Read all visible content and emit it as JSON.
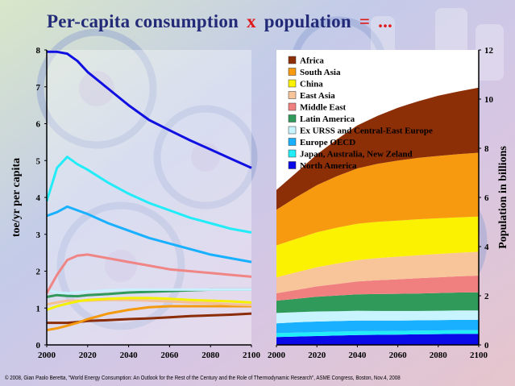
{
  "title": {
    "left": "Per-capita consumption",
    "times": "x",
    "middle": "population",
    "equals": "=",
    "dots": "..."
  },
  "footer": "© 2008, Gian Paolo Beretta, \"World Energy Consumption: An Outlook for the Rest of the Century and the Role of Thermodynamic Research\", ASME Congress, Boston, Nov.4, 2008",
  "chart_data": [
    {
      "type": "line",
      "title": "Per-capita consumption",
      "xlabel": "",
      "ylabel": "toe/yr per capita",
      "xlim": [
        2000,
        2100
      ],
      "ylim": [
        0,
        8
      ],
      "xticks": [
        "2000",
        "2020",
        "2040",
        "2060",
        "2080",
        "2100"
      ],
      "yticks": [
        "0",
        "1",
        "2",
        "3",
        "4",
        "5",
        "6",
        "7",
        "8"
      ],
      "x": [
        2000,
        2005,
        2010,
        2015,
        2020,
        2030,
        2040,
        2050,
        2060,
        2070,
        2080,
        2090,
        2100
      ],
      "series": [
        {
          "name": "North America",
          "color": "#1010e0",
          "values": [
            7.95,
            7.95,
            7.9,
            7.7,
            7.4,
            6.95,
            6.5,
            6.1,
            5.82,
            5.55,
            5.3,
            5.05,
            4.8
          ]
        },
        {
          "name": "Japan, Australia, New Zeland",
          "color": "#22ecf8",
          "values": [
            3.9,
            4.8,
            5.1,
            4.9,
            4.75,
            4.4,
            4.1,
            3.85,
            3.65,
            3.45,
            3.3,
            3.15,
            3.05
          ]
        },
        {
          "name": "Europe OECD",
          "color": "#18b0ff",
          "values": [
            3.5,
            3.6,
            3.75,
            3.65,
            3.55,
            3.3,
            3.1,
            2.9,
            2.75,
            2.6,
            2.45,
            2.35,
            2.25
          ]
        },
        {
          "name": "Middle East",
          "color": "#f08585",
          "values": [
            1.4,
            1.9,
            2.3,
            2.42,
            2.45,
            2.35,
            2.25,
            2.15,
            2.05,
            2.0,
            1.95,
            1.9,
            1.85
          ]
        },
        {
          "name": "Ex URSS and Central-East Europe",
          "color": "#c8f0ff",
          "values": [
            1.5,
            1.42,
            1.4,
            1.42,
            1.45,
            1.48,
            1.5,
            1.5,
            1.5,
            1.5,
            1.5,
            1.5,
            1.5
          ]
        },
        {
          "name": "Latin America",
          "color": "#2f9a5a",
          "values": [
            1.3,
            1.35,
            1.33,
            1.32,
            1.35,
            1.38,
            1.42,
            1.44,
            1.46,
            1.48,
            1.5,
            1.5,
            1.5
          ]
        },
        {
          "name": "China",
          "color": "#f4f000",
          "values": [
            0.95,
            1.05,
            1.12,
            1.18,
            1.22,
            1.25,
            1.27,
            1.27,
            1.25,
            1.22,
            1.2,
            1.18,
            1.15
          ]
        },
        {
          "name": "East Asia",
          "color": "#f5c095",
          "values": [
            1.1,
            1.15,
            1.2,
            1.2,
            1.2,
            1.22,
            1.22,
            1.2,
            1.18,
            1.15,
            1.13,
            1.1,
            1.08
          ]
        },
        {
          "name": "South Asia",
          "color": "#f39a10",
          "values": [
            0.4,
            0.45,
            0.52,
            0.6,
            0.7,
            0.85,
            0.95,
            1.02,
            1.05,
            1.05,
            1.05,
            1.05,
            1.05
          ]
        },
        {
          "name": "Africa",
          "color": "#8b2d08",
          "values": [
            0.6,
            0.6,
            0.6,
            0.62,
            0.65,
            0.67,
            0.7,
            0.72,
            0.75,
            0.78,
            0.8,
            0.82,
            0.85
          ]
        }
      ]
    },
    {
      "type": "area",
      "title": "Population",
      "xlabel": "",
      "ylabel": "Population in billions",
      "stacked": true,
      "xlim": [
        2000,
        2100
      ],
      "ylim": [
        0,
        12
      ],
      "xticks": [
        "2000",
        "2020",
        "2040",
        "2060",
        "2080",
        "2100"
      ],
      "yticks": [
        "0",
        "2",
        "4",
        "6",
        "8",
        "10",
        "12"
      ],
      "x": [
        2000,
        2010,
        2020,
        2030,
        2040,
        2050,
        2060,
        2070,
        2080,
        2090,
        2100
      ],
      "legend_position": "top-left",
      "series": [
        {
          "name": "North America",
          "color": "#0a0ae8",
          "values": [
            0.32,
            0.34,
            0.36,
            0.38,
            0.4,
            0.41,
            0.42,
            0.43,
            0.44,
            0.45,
            0.45
          ]
        },
        {
          "name": "Japan, Australia, New Zeland",
          "color": "#22ecf8",
          "values": [
            0.16,
            0.16,
            0.16,
            0.16,
            0.16,
            0.15,
            0.15,
            0.15,
            0.15,
            0.15,
            0.15
          ]
        },
        {
          "name": "Europe OECD",
          "color": "#18b0ff",
          "values": [
            0.4,
            0.42,
            0.43,
            0.43,
            0.43,
            0.43,
            0.42,
            0.42,
            0.42,
            0.42,
            0.42
          ]
        },
        {
          "name": "Ex URSS and Central-East Europe",
          "color": "#c8f4ff",
          "values": [
            0.42,
            0.41,
            0.41,
            0.4,
            0.4,
            0.39,
            0.39,
            0.38,
            0.38,
            0.38,
            0.38
          ]
        },
        {
          "name": "Latin America",
          "color": "#2f9a5a",
          "values": [
            0.5,
            0.55,
            0.6,
            0.64,
            0.67,
            0.69,
            0.7,
            0.71,
            0.72,
            0.73,
            0.74
          ]
        },
        {
          "name": "Middle East",
          "color": "#f08080",
          "values": [
            0.3,
            0.36,
            0.42,
            0.47,
            0.52,
            0.56,
            0.59,
            0.62,
            0.64,
            0.66,
            0.68
          ]
        },
        {
          "name": "East Asia",
          "color": "#f8c49a",
          "values": [
            0.65,
            0.72,
            0.78,
            0.83,
            0.87,
            0.9,
            0.92,
            0.94,
            0.95,
            0.96,
            0.97
          ]
        },
        {
          "name": "China",
          "color": "#faf200",
          "values": [
            1.3,
            1.36,
            1.42,
            1.46,
            1.48,
            1.48,
            1.47,
            1.46,
            1.45,
            1.44,
            1.43
          ]
        },
        {
          "name": "South Asia",
          "color": "#f79a10",
          "values": [
            1.45,
            1.7,
            1.92,
            2.1,
            2.25,
            2.36,
            2.44,
            2.5,
            2.54,
            2.57,
            2.6
          ]
        },
        {
          "name": "Africa",
          "color": "#8c2e06",
          "values": [
            0.8,
            1.0,
            1.25,
            1.5,
            1.75,
            1.95,
            2.15,
            2.3,
            2.45,
            2.55,
            2.65
          ]
        }
      ]
    }
  ]
}
